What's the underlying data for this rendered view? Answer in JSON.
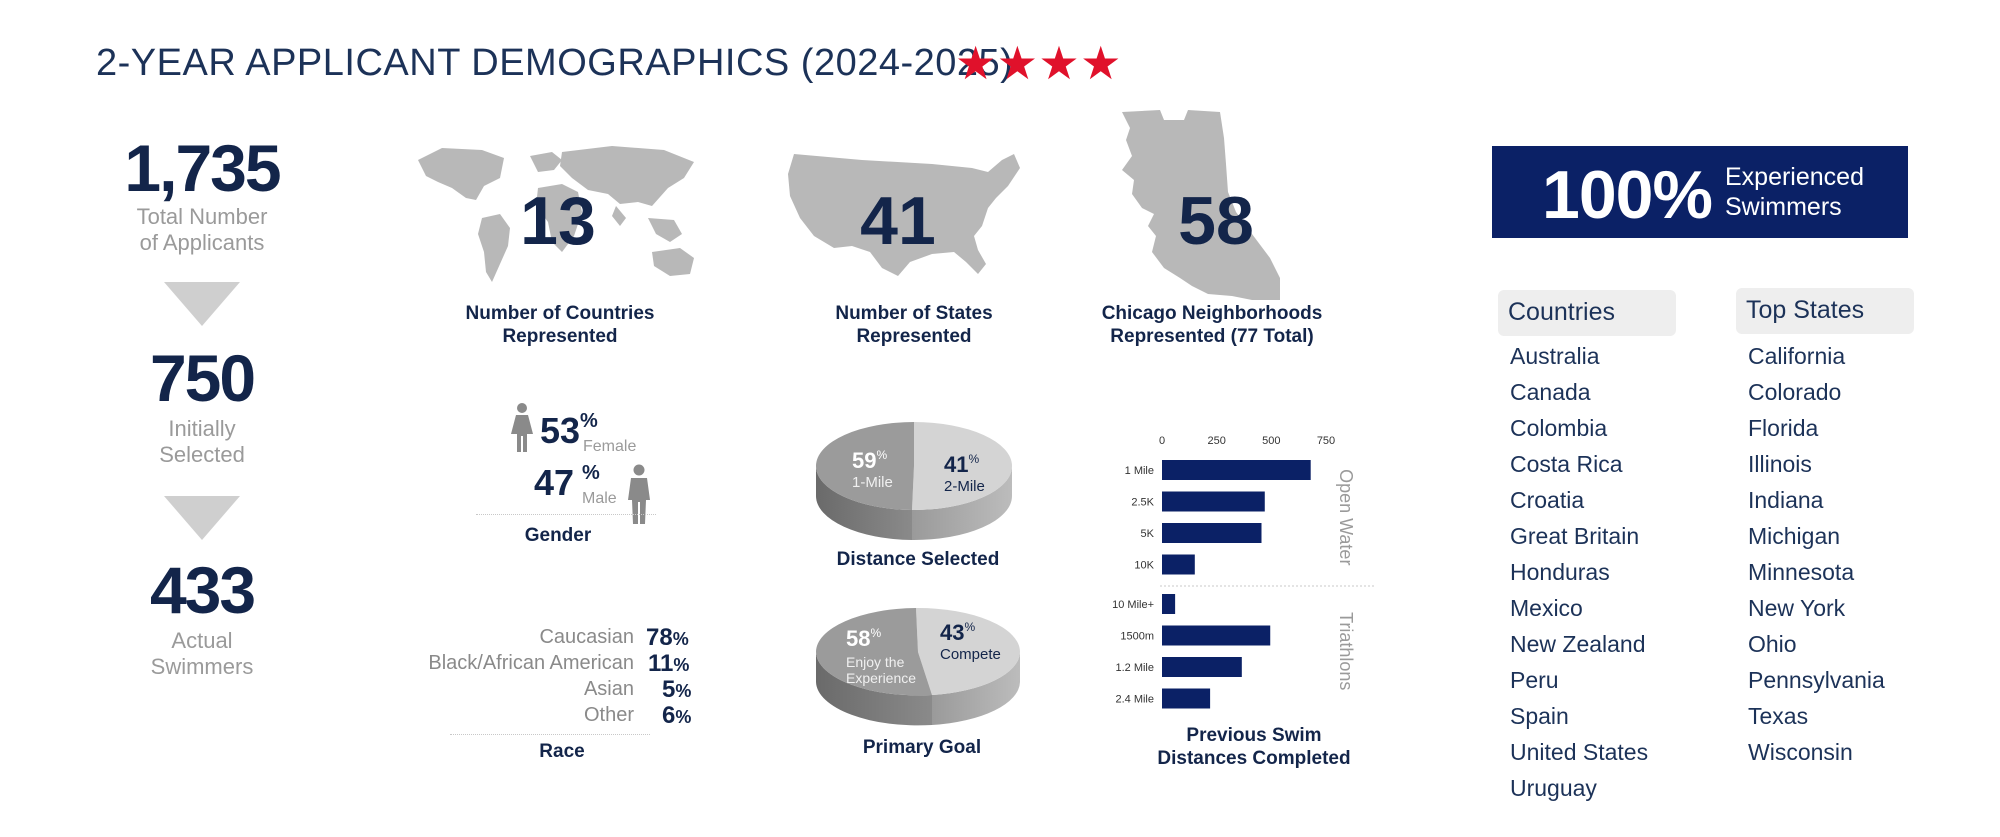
{
  "title": "2-YEAR APPLICANT DEMOGRAPHICS (2024-2025)",
  "stars": [
    "★",
    "★",
    "★",
    "★"
  ],
  "funnel": [
    {
      "value": "1,735",
      "label_line1": "Total Number",
      "label_line2": "of Applicants"
    },
    {
      "value": "750",
      "label_line1": "Initially",
      "label_line2": "Selected"
    },
    {
      "value": "433",
      "label_line1": "Actual",
      "label_line2": "Swimmers"
    }
  ],
  "maps": {
    "countries": {
      "value": "13",
      "caption_line1": "Number of Countries",
      "caption_line2": "Represented"
    },
    "states": {
      "value": "41",
      "caption_line1": "Number of States",
      "caption_line2": "Represented"
    },
    "neighborhoods": {
      "value": "58",
      "caption_line1": "Chicago Neighborhoods",
      "caption_line2": "Represented (77 Total)"
    }
  },
  "gender": {
    "female_value": "53",
    "female_label": "Female",
    "male_value": "47",
    "male_label": "Male",
    "percent": "%",
    "caption": "Gender"
  },
  "race": {
    "items": [
      {
        "label": "Caucasian",
        "value": "78",
        "pct": "%"
      },
      {
        "label": "Black/African American",
        "value": "11",
        "pct": "%"
      },
      {
        "label": "Asian",
        "value": "5",
        "pct": "%"
      },
      {
        "label": "Other",
        "value": "6",
        "pct": "%"
      }
    ],
    "caption": "Race"
  },
  "distance": {
    "left_value": "59",
    "left_label": "1-Mile",
    "right_value": "41",
    "right_label": "2-Mile",
    "percent": "%",
    "caption": "Distance Selected"
  },
  "goal": {
    "left_value": "58",
    "left_label_line1": "Enjoy the",
    "left_label_line2": "Experience",
    "right_value": "43",
    "right_label": "Compete",
    "percent": "%",
    "caption": "Primary Goal"
  },
  "chart_data": {
    "type": "bar",
    "orientation": "horizontal",
    "title": "Previous Swim Distances Completed",
    "title_line1": "Previous Swim",
    "title_line2": "Distances Completed",
    "xlim": [
      0,
      750
    ],
    "xticks": [
      "0",
      "250",
      "500",
      "750"
    ],
    "groups": [
      {
        "name": "Open Water",
        "categories": [
          "1 Mile",
          "2.5K",
          "5K",
          "10K"
        ],
        "values": [
          680,
          470,
          455,
          150
        ]
      },
      {
        "name": "Triathlons",
        "categories": [
          "10 Mile+",
          "1500m",
          "1.2 Mile",
          "2.4 Mile"
        ],
        "values": [
          60,
          495,
          365,
          220
        ]
      }
    ],
    "bar_color": "#0b2166"
  },
  "banner": {
    "value": "100%",
    "text_line1": "Experienced",
    "text_line2": "Swimmers"
  },
  "countries_list": {
    "header": "Countries",
    "items": [
      "Australia",
      "Canada",
      "Colombia",
      "Costa Rica",
      "Croatia",
      "Great Britain",
      "Honduras",
      "Mexico",
      "New Zealand",
      "Peru",
      "Spain",
      "United States",
      "Uruguay"
    ]
  },
  "states_list": {
    "header": "Top States",
    "items": [
      "California",
      "Colorado",
      "Florida",
      "Illinois",
      "Indiana",
      "Michigan",
      "Minnesota",
      "New York",
      "Ohio",
      "Pennsylvania",
      "Texas",
      "Wisconsin"
    ]
  },
  "colors": {
    "navy": "#13254a",
    "accent_red": "#e0112b",
    "banner_bg": "#0b2166",
    "gray": "#9a9a9a"
  }
}
